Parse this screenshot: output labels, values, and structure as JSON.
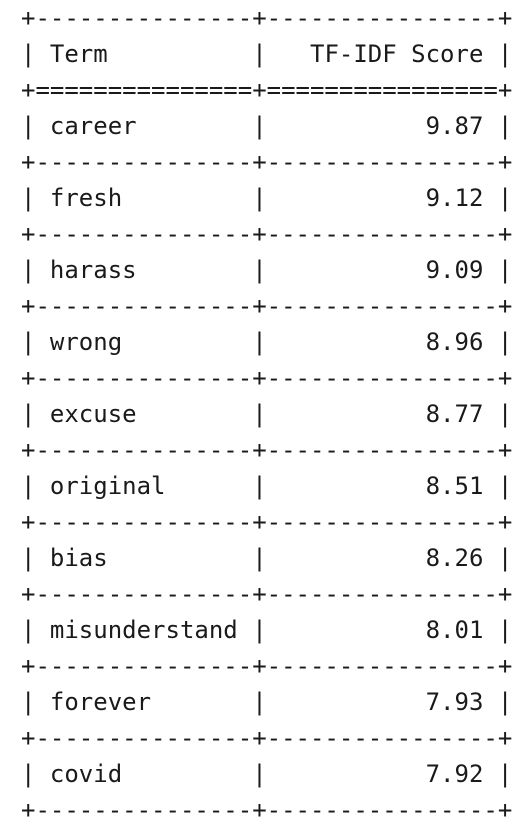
{
  "table": {
    "header": {
      "term": "Term",
      "score": "TF-IDF Score"
    },
    "rows": [
      {
        "term": "career",
        "score": "9.87"
      },
      {
        "term": "fresh",
        "score": "9.12"
      },
      {
        "term": "harass",
        "score": "9.09"
      },
      {
        "term": "wrong",
        "score": "8.96"
      },
      {
        "term": "excuse",
        "score": "8.77"
      },
      {
        "term": "original",
        "score": "8.51"
      },
      {
        "term": "bias",
        "score": "8.26"
      },
      {
        "term": "misunderstand",
        "score": "8.01"
      },
      {
        "term": "forever",
        "score": "7.93"
      },
      {
        "term": "covid",
        "score": "7.92"
      }
    ]
  },
  "chart_data": {
    "type": "table",
    "columns": [
      "Term",
      "TF-IDF Score"
    ],
    "rows": [
      [
        "career",
        9.87
      ],
      [
        "fresh",
        9.12
      ],
      [
        "harass",
        9.09
      ],
      [
        "wrong",
        8.96
      ],
      [
        "excuse",
        8.77
      ],
      [
        "original",
        8.51
      ],
      [
        "bias",
        8.26
      ],
      [
        "misunderstand",
        8.01
      ],
      [
        "forever",
        7.93
      ],
      [
        "covid",
        7.92
      ]
    ]
  }
}
